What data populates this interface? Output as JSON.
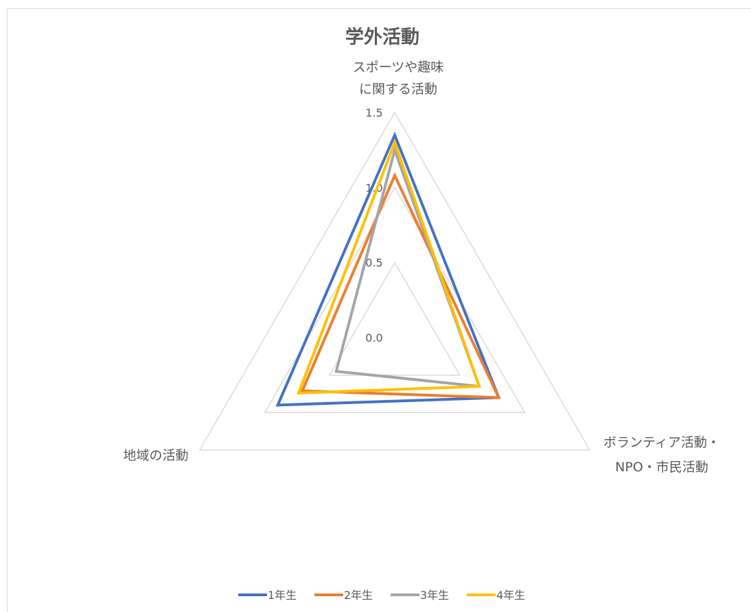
{
  "chart_data": {
    "type": "radar",
    "title": "学外活動",
    "axes": [
      {
        "label_lines": [
          "スポーツや趣味",
          "に関する活動"
        ]
      },
      {
        "label_lines": [
          "ボランティア活動・",
          "NPO・市民活動"
        ]
      },
      {
        "label_lines": [
          "地域の活動"
        ]
      }
    ],
    "rlim": [
      0.0,
      1.5
    ],
    "ticks": [
      "0.0",
      "0.5",
      "1.0",
      "1.5"
    ],
    "tick_values": [
      0.0,
      0.5,
      1.0,
      1.5
    ],
    "grid": true,
    "legend_position": "bottom",
    "series": [
      {
        "name": "1年生",
        "color": "#4472C4",
        "values": [
          1.35,
          0.8,
          0.9
        ]
      },
      {
        "name": "2年生",
        "color": "#ED7D31",
        "values": [
          1.08,
          0.8,
          0.71
        ]
      },
      {
        "name": "3年生",
        "color": "#A5A5A5",
        "values": [
          1.25,
          0.65,
          0.45
        ]
      },
      {
        "name": "4年生",
        "color": "#FFC000",
        "values": [
          1.3,
          0.65,
          0.74
        ]
      }
    ]
  }
}
